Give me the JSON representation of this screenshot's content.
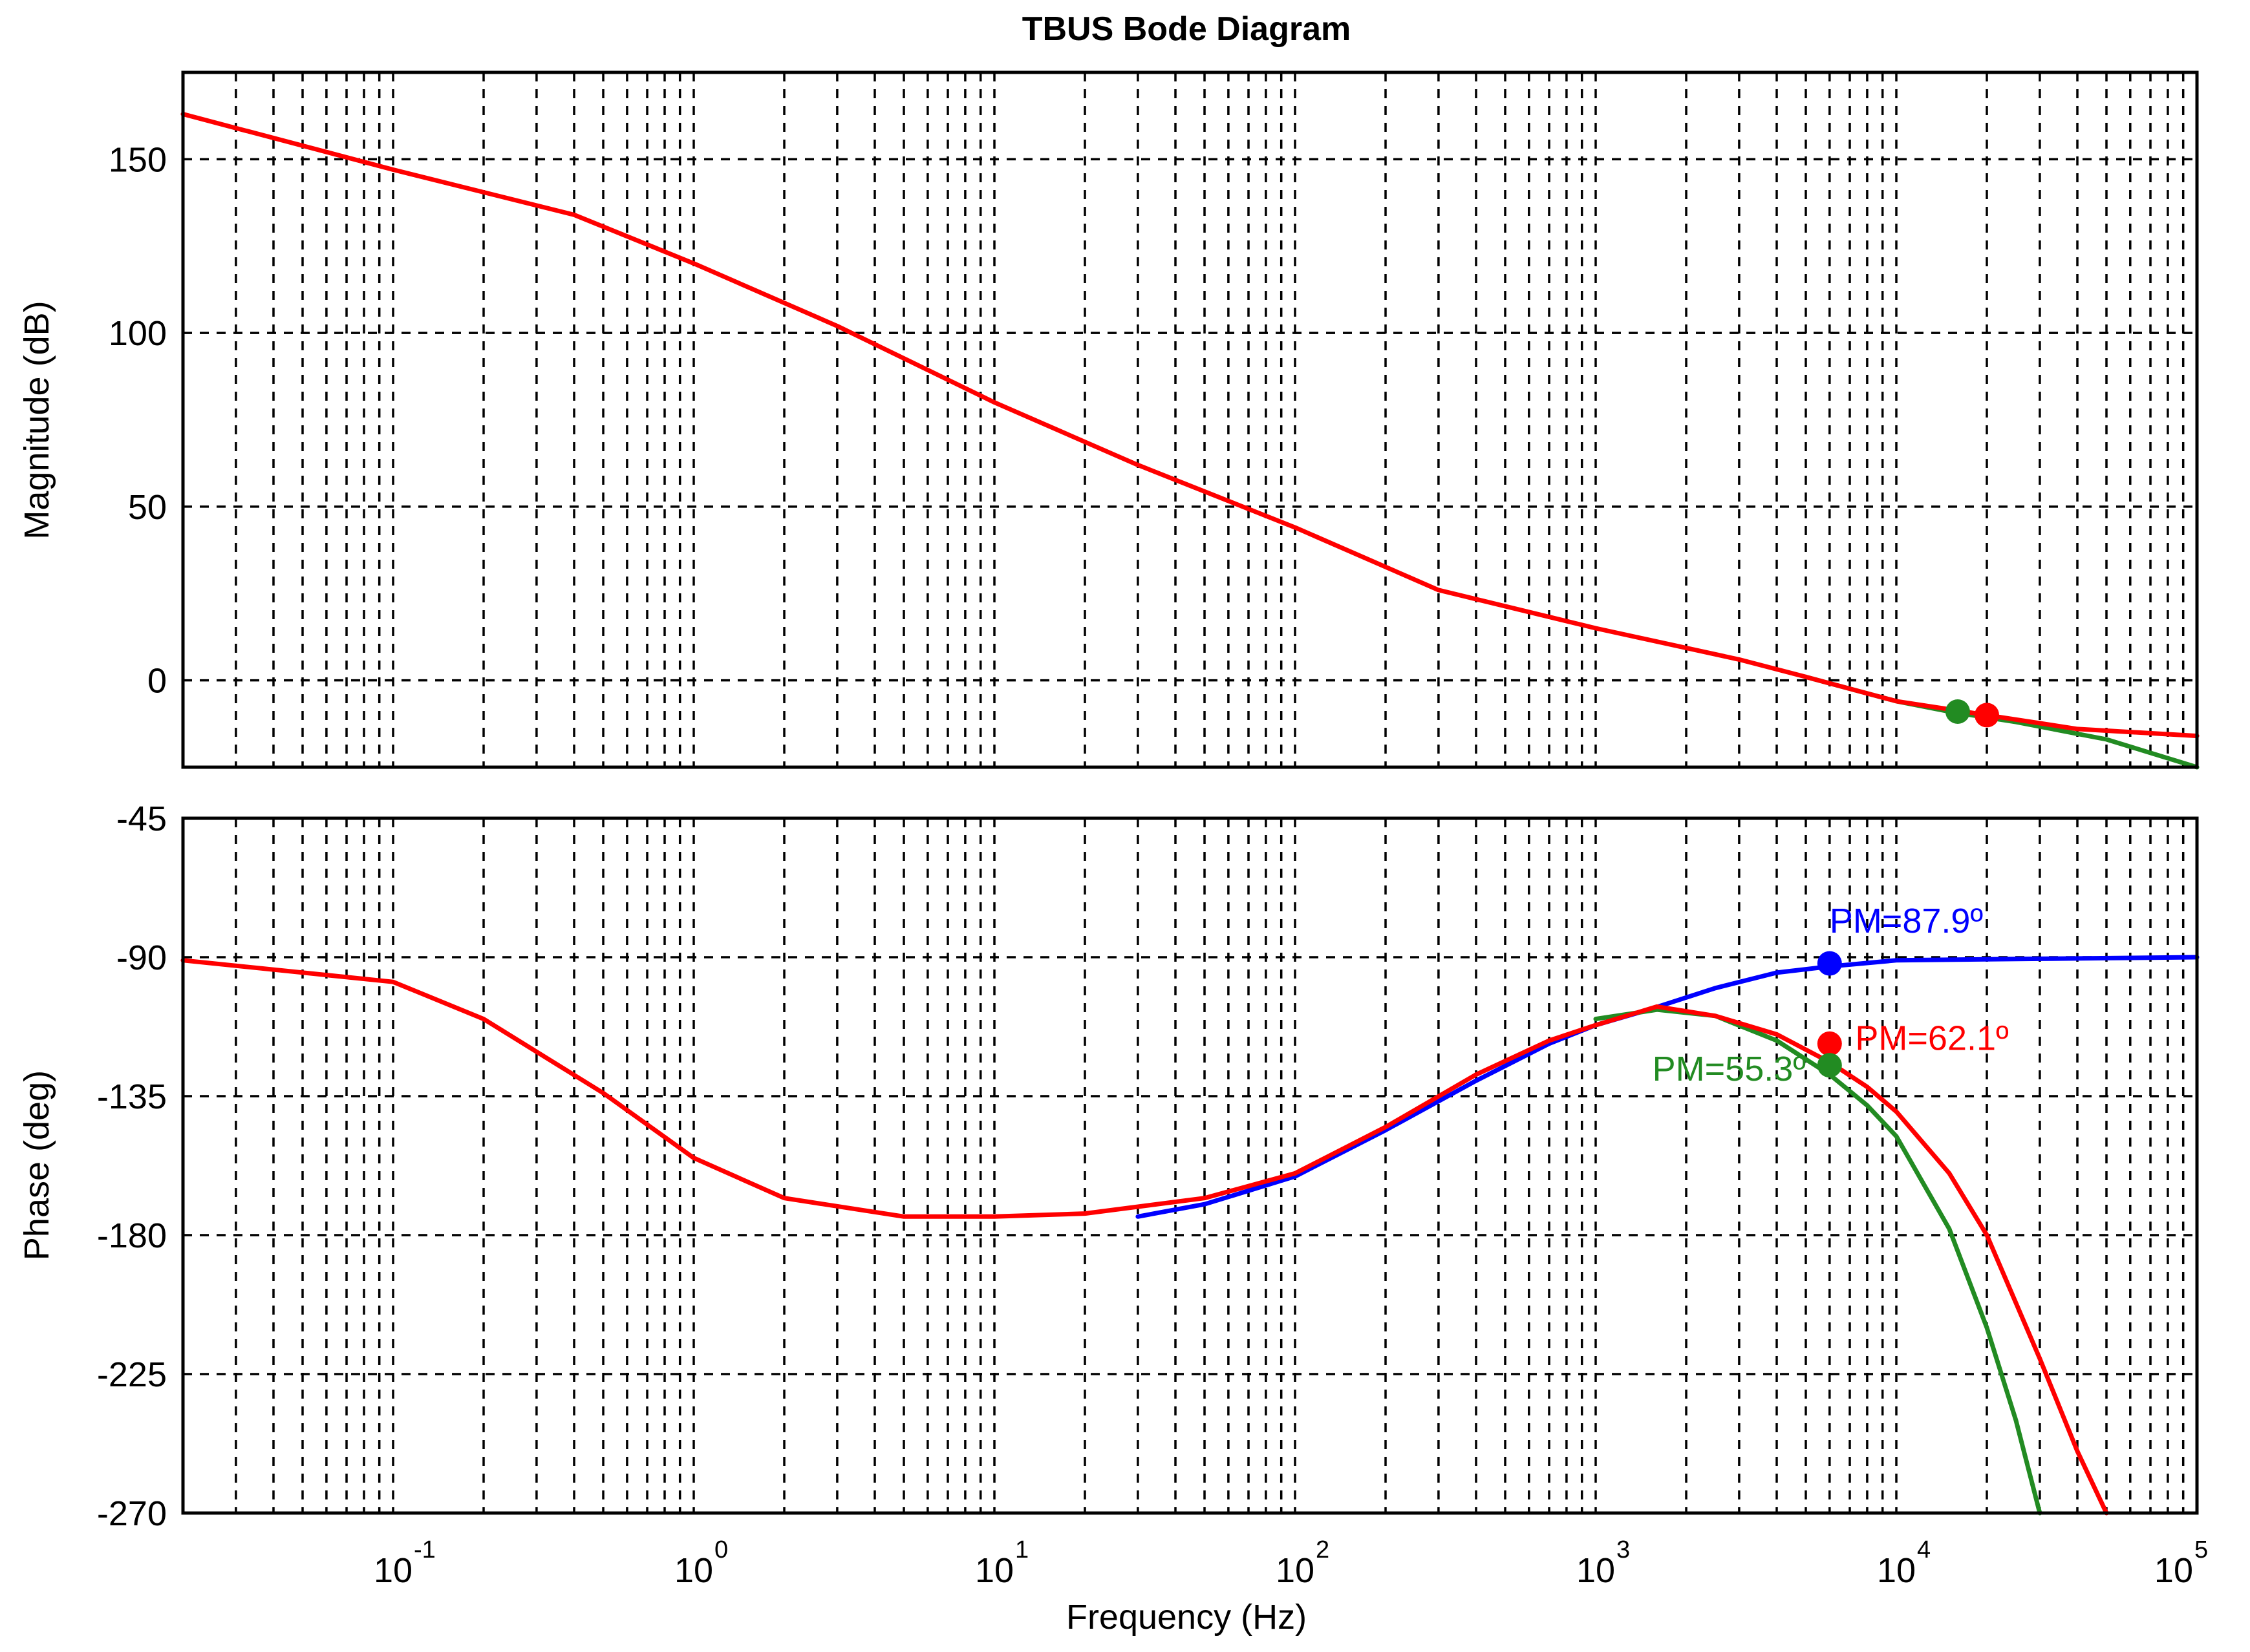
{
  "chart_data": {
    "type": "line",
    "title": "TBUS Bode Diagram",
    "xlabel": "Frequency (Hz)",
    "xscale": "log",
    "xlim": [
      0.02,
      100000
    ],
    "x_ticks": [
      {
        "base": "10",
        "exp": "-1",
        "value": 0.1
      },
      {
        "base": "10",
        "exp": "0",
        "value": 1
      },
      {
        "base": "10",
        "exp": "1",
        "value": 10
      },
      {
        "base": "10",
        "exp": "2",
        "value": 100
      },
      {
        "base": "10",
        "exp": "3",
        "value": 1000
      },
      {
        "base": "10",
        "exp": "4",
        "value": 10000
      },
      {
        "base": "10",
        "exp": "5",
        "value": 100000
      }
    ],
    "grid": true,
    "panels": [
      {
        "name": "magnitude",
        "ylabel": "Magnitude (dB)",
        "ylim": [
          -25,
          175
        ],
        "yticks": [
          150,
          100,
          50,
          0
        ],
        "ytick_labels": [
          "150",
          "100",
          "50",
          "0"
        ],
        "series": [
          {
            "name": "green",
            "color": "#228B22",
            "x": [
              5000,
              10000,
              15000,
              25000,
              50000,
              100000
            ],
            "y": [
              1,
              -6,
              -9,
              -12,
              -17,
              -25
            ]
          },
          {
            "name": "red",
            "color": "#ff0000",
            "x": [
              0.02,
              0.1,
              0.4,
              1,
              3,
              10,
              30,
              100,
              300,
              1000,
              3000,
              5000,
              10000,
              20000,
              40000,
              100000
            ],
            "y": [
              163,
              147,
              134,
              120,
              102,
              80,
              62,
              44,
              26,
              15,
              6,
              1,
              -6,
              -10,
              -14,
              -16
            ]
          }
        ],
        "markers": [
          {
            "series": "green",
            "x": 16000,
            "y": -9
          },
          {
            "series": "red",
            "x": 20000,
            "y": -10
          }
        ]
      },
      {
        "name": "phase",
        "ylabel": "Phase (deg)",
        "ylim": [
          -270,
          -45
        ],
        "yticks": [
          -45,
          -90,
          -135,
          -180,
          -225,
          -270
        ],
        "ytick_labels": [
          "-45",
          "-90",
          "-135",
          "-180",
          "-225",
          "-270"
        ],
        "series": [
          {
            "name": "blue",
            "color": "#0000ff",
            "x": [
              30,
              50,
              100,
              200,
              400,
              700,
              1000,
              1500,
              2500,
              4000,
              6000,
              10000,
              30000,
              100000
            ],
            "y": [
              -174,
              -170,
              -161,
              -146,
              -130,
              -118,
              -112,
              -107,
              -100,
              -95,
              -93,
              -91,
              -90.5,
              -90
            ]
          },
          {
            "name": "green",
            "color": "#228B22",
            "x": [
              1000,
              1600,
              2500,
              4000,
              6000,
              8000,
              10000,
              15000,
              20000,
              25000,
              30000
            ],
            "y": [
              -110,
              -107,
              -109,
              -117,
              -128,
              -138,
              -148,
              -178,
              -210,
              -240,
              -270
            ]
          },
          {
            "name": "red",
            "color": "#ff0000",
            "x": [
              0.02,
              0.1,
              0.2,
              0.5,
              1,
              2,
              5,
              10,
              20,
              50,
              100,
              200,
              400,
              700,
              1000,
              1600,
              2500,
              4000,
              6000,
              8000,
              10000,
              15000,
              20000,
              30000,
              40000,
              50000
            ],
            "y": [
              -91,
              -98,
              -110,
              -134,
              -155,
              -168,
              -174,
              -174,
              -173,
              -168,
              -160,
              -145,
              -128,
              -117,
              -112,
              -106,
              -109,
              -115,
              -124,
              -132,
              -140,
              -160,
              -180,
              -220,
              -250,
              -270
            ]
          }
        ],
        "markers": [
          {
            "series": "blue",
            "x": 6000,
            "y": -92
          },
          {
            "series": "red",
            "x": 6000,
            "y": -118
          },
          {
            "series": "green",
            "x": 6000,
            "y": -125
          }
        ],
        "annotations": [
          {
            "text": "PM=87.9º",
            "color": "#0000ff",
            "x": 6000,
            "y": -82,
            "anchor": "start"
          },
          {
            "text": "PM=62.1º",
            "color": "#ff0000",
            "x": 7300,
            "y": -120,
            "anchor": "start"
          },
          {
            "text": "PM=55.3º",
            "color": "#228B22",
            "x": 5000,
            "y": -130,
            "anchor": "end"
          }
        ]
      }
    ]
  }
}
